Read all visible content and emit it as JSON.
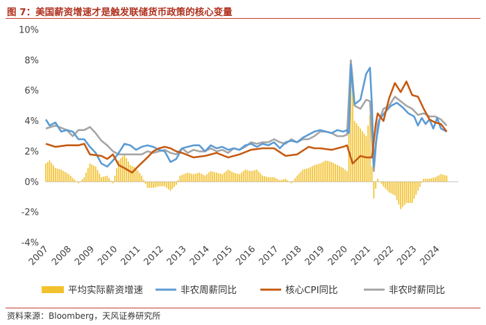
{
  "figure": {
    "title": "图 7：美国薪资增速才是触发联储货币政策的核心变量",
    "source": "资料来源：Bloomberg，天风证券研究所"
  },
  "colors": {
    "title_red": "#b0301e",
    "real_wage": "#f2c12e",
    "nonfarm_weekly": "#5b9bd5",
    "core_cpi": "#c55a11",
    "nonfarm_hourly": "#a5a5a5"
  },
  "chart_data": {
    "type": "bar+line",
    "x_type": "monthly date",
    "x_start": "2007-01",
    "x_end": "2024-06",
    "xlim": [
      "2007-01",
      "2024-12"
    ],
    "ylim": [
      -4,
      10
    ],
    "y_ticks": [
      "10%",
      "8%",
      "6%",
      "4%",
      "2%",
      "0%",
      "-2%",
      "-4%"
    ],
    "x_ticks": [
      "2007",
      "2008",
      "2009",
      "2010",
      "2011",
      "2012",
      "2013",
      "2014",
      "2015",
      "2016",
      "2017",
      "2018",
      "2019",
      "2020",
      "2021",
      "2022",
      "2023",
      "2024"
    ],
    "grid": false,
    "legend_position": "bottom",
    "series": [
      {
        "name": "平均实际薪资增速",
        "kind": "bar",
        "keypoints": [
          [
            "2007-01",
            1.2
          ],
          [
            "2007-03",
            1.4
          ],
          [
            "2007-06",
            0.9
          ],
          [
            "2007-09",
            0.8
          ],
          [
            "2008-01",
            0.5
          ],
          [
            "2008-06",
            -0.1
          ],
          [
            "2008-09",
            0.3
          ],
          [
            "2008-12",
            1.2
          ],
          [
            "2009-03",
            1.0
          ],
          [
            "2009-06",
            0.3
          ],
          [
            "2009-09",
            0.4
          ],
          [
            "2009-12",
            -0.1
          ],
          [
            "2010-03",
            1.4
          ],
          [
            "2010-06",
            1.8
          ],
          [
            "2010-09",
            1.1
          ],
          [
            "2010-12",
            0.9
          ],
          [
            "2011-03",
            0.4
          ],
          [
            "2011-06",
            -0.4
          ],
          [
            "2011-09",
            -0.4
          ],
          [
            "2011-12",
            -0.3
          ],
          [
            "2012-03",
            -0.3
          ],
          [
            "2012-06",
            -0.6
          ],
          [
            "2012-09",
            -0.2
          ],
          [
            "2012-11",
            0.4
          ],
          [
            "2013-03",
            0.6
          ],
          [
            "2013-06",
            0.5
          ],
          [
            "2013-09",
            0.6
          ],
          [
            "2013-12",
            0.4
          ],
          [
            "2014-03",
            0.7
          ],
          [
            "2014-06",
            0.6
          ],
          [
            "2014-09",
            0.5
          ],
          [
            "2014-12",
            0.8
          ],
          [
            "2015-03",
            0.6
          ],
          [
            "2015-06",
            0.5
          ],
          [
            "2015-09",
            0.8
          ],
          [
            "2015-12",
            0.7
          ],
          [
            "2016-03",
            0.8
          ],
          [
            "2016-06",
            0.4
          ],
          [
            "2016-09",
            0.3
          ],
          [
            "2016-12",
            0.3
          ],
          [
            "2017-03",
            0.1
          ],
          [
            "2017-06",
            0.2
          ],
          [
            "2017-09",
            -0.1
          ],
          [
            "2017-12",
            0.4
          ],
          [
            "2018-03",
            0.8
          ],
          [
            "2018-06",
            0.9
          ],
          [
            "2018-09",
            1.1
          ],
          [
            "2018-12",
            1.2
          ],
          [
            "2019-03",
            1.4
          ],
          [
            "2019-06",
            1.3
          ],
          [
            "2019-09",
            1.1
          ],
          [
            "2019-12",
            0.9
          ],
          [
            "2020-02",
            0.7
          ],
          [
            "2020-04",
            7.6
          ],
          [
            "2020-05",
            6.8
          ],
          [
            "2020-06",
            4.0
          ],
          [
            "2020-09",
            3.5
          ],
          [
            "2020-12",
            3.0
          ],
          [
            "2021-02",
            4.4
          ],
          [
            "2021-03",
            1.0
          ],
          [
            "2021-04",
            -1.1
          ],
          [
            "2021-06",
            0.2
          ],
          [
            "2021-09",
            -0.3
          ],
          [
            "2021-12",
            -0.7
          ],
          [
            "2022-03",
            -0.9
          ],
          [
            "2022-06",
            -1.8
          ],
          [
            "2022-09",
            -1.4
          ],
          [
            "2022-12",
            -1.4
          ],
          [
            "2023-03",
            -0.6
          ],
          [
            "2023-06",
            0.2
          ],
          [
            "2023-09",
            0.2
          ],
          [
            "2023-12",
            0.3
          ],
          [
            "2024-03",
            0.5
          ],
          [
            "2024-06",
            0.4
          ]
        ]
      },
      {
        "name": "非农周薪同比",
        "kind": "line",
        "keypoints": [
          [
            "2007-01",
            4.1
          ],
          [
            "2007-03",
            3.7
          ],
          [
            "2007-06",
            3.9
          ],
          [
            "2007-09",
            3.3
          ],
          [
            "2007-12",
            3.4
          ],
          [
            "2008-03",
            3.3
          ],
          [
            "2008-06",
            2.8
          ],
          [
            "2008-09",
            2.8
          ],
          [
            "2008-12",
            2.3
          ],
          [
            "2009-03",
            1.9
          ],
          [
            "2009-06",
            1.2
          ],
          [
            "2009-09",
            1.0
          ],
          [
            "2009-12",
            1.4
          ],
          [
            "2010-03",
            1.9
          ],
          [
            "2010-06",
            2.5
          ],
          [
            "2010-09",
            2.4
          ],
          [
            "2010-12",
            2.1
          ],
          [
            "2011-03",
            2.3
          ],
          [
            "2011-06",
            2.4
          ],
          [
            "2011-09",
            2.3
          ],
          [
            "2011-12",
            2.1
          ],
          [
            "2012-03",
            2.0
          ],
          [
            "2012-06",
            1.3
          ],
          [
            "2012-09",
            1.5
          ],
          [
            "2012-12",
            2.2
          ],
          [
            "2013-03",
            2.3
          ],
          [
            "2013-06",
            2.4
          ],
          [
            "2013-09",
            2.4
          ],
          [
            "2013-12",
            2.0
          ],
          [
            "2014-03",
            2.4
          ],
          [
            "2014-06",
            2.2
          ],
          [
            "2014-09",
            2.3
          ],
          [
            "2014-12",
            2.1
          ],
          [
            "2015-03",
            2.2
          ],
          [
            "2015-06",
            2.1
          ],
          [
            "2015-09",
            2.4
          ],
          [
            "2015-12",
            2.5
          ],
          [
            "2016-03",
            2.3
          ],
          [
            "2016-06",
            2.5
          ],
          [
            "2016-09",
            2.4
          ],
          [
            "2016-12",
            2.6
          ],
          [
            "2017-03",
            2.2
          ],
          [
            "2017-06",
            2.6
          ],
          [
            "2017-09",
            2.7
          ],
          [
            "2017-12",
            2.6
          ],
          [
            "2018-03",
            2.9
          ],
          [
            "2018-06",
            3.1
          ],
          [
            "2018-09",
            3.3
          ],
          [
            "2018-12",
            3.4
          ],
          [
            "2019-03",
            3.3
          ],
          [
            "2019-06",
            3.2
          ],
          [
            "2019-09",
            3.4
          ],
          [
            "2019-12",
            3.3
          ],
          [
            "2020-02",
            3.4
          ],
          [
            "2020-03",
            3.2
          ],
          [
            "2020-04",
            7.7
          ],
          [
            "2020-05",
            6.2
          ],
          [
            "2020-06",
            5.1
          ],
          [
            "2020-09",
            5.4
          ],
          [
            "2020-12",
            7.1
          ],
          [
            "2021-02",
            7.5
          ],
          [
            "2021-03",
            5.0
          ],
          [
            "2021-04",
            1.0
          ],
          [
            "2021-05",
            2.5
          ],
          [
            "2021-07",
            4.1
          ],
          [
            "2021-10",
            4.6
          ],
          [
            "2022-01",
            5.0
          ],
          [
            "2022-04",
            5.2
          ],
          [
            "2022-07",
            4.9
          ],
          [
            "2022-10",
            4.5
          ],
          [
            "2023-01",
            4.3
          ],
          [
            "2023-03",
            3.7
          ],
          [
            "2023-05",
            4.2
          ],
          [
            "2023-07",
            3.8
          ],
          [
            "2023-09",
            4.1
          ],
          [
            "2023-11",
            3.5
          ],
          [
            "2024-01",
            4.2
          ],
          [
            "2024-03",
            3.5
          ],
          [
            "2024-06",
            3.3
          ]
        ]
      },
      {
        "name": "核心CPI同比",
        "kind": "line",
        "keypoints": [
          [
            "2007-01",
            2.5
          ],
          [
            "2007-06",
            2.3
          ],
          [
            "2007-12",
            2.4
          ],
          [
            "2008-03",
            2.4
          ],
          [
            "2008-06",
            2.4
          ],
          [
            "2008-09",
            2.5
          ],
          [
            "2008-12",
            1.8
          ],
          [
            "2009-06",
            1.7
          ],
          [
            "2009-09",
            1.5
          ],
          [
            "2009-12",
            1.8
          ],
          [
            "2010-03",
            1.1
          ],
          [
            "2010-06",
            0.9
          ],
          [
            "2010-10",
            0.6
          ],
          [
            "2011-01",
            1.0
          ],
          [
            "2011-06",
            1.6
          ],
          [
            "2011-09",
            2.0
          ],
          [
            "2011-12",
            2.2
          ],
          [
            "2012-03",
            2.3
          ],
          [
            "2012-06",
            2.2
          ],
          [
            "2012-09",
            2.0
          ],
          [
            "2012-12",
            1.9
          ],
          [
            "2013-06",
            1.6
          ],
          [
            "2013-12",
            1.7
          ],
          [
            "2014-06",
            1.9
          ],
          [
            "2014-12",
            1.6
          ],
          [
            "2015-06",
            1.8
          ],
          [
            "2015-12",
            2.1
          ],
          [
            "2016-06",
            2.2
          ],
          [
            "2016-12",
            2.2
          ],
          [
            "2017-06",
            1.7
          ],
          [
            "2017-12",
            1.8
          ],
          [
            "2018-06",
            2.3
          ],
          [
            "2018-09",
            2.2
          ],
          [
            "2018-12",
            2.2
          ],
          [
            "2019-06",
            2.1
          ],
          [
            "2019-12",
            2.3
          ],
          [
            "2020-02",
            2.4
          ],
          [
            "2020-05",
            1.2
          ],
          [
            "2020-09",
            1.7
          ],
          [
            "2020-12",
            1.6
          ],
          [
            "2021-03",
            1.6
          ],
          [
            "2021-05",
            3.8
          ],
          [
            "2021-06",
            4.5
          ],
          [
            "2021-09",
            4.0
          ],
          [
            "2021-12",
            5.5
          ],
          [
            "2022-03",
            6.5
          ],
          [
            "2022-06",
            5.9
          ],
          [
            "2022-09",
            6.6
          ],
          [
            "2022-12",
            5.7
          ],
          [
            "2023-03",
            5.6
          ],
          [
            "2023-06",
            4.8
          ],
          [
            "2023-09",
            4.1
          ],
          [
            "2023-12",
            3.9
          ],
          [
            "2024-03",
            3.8
          ],
          [
            "2024-06",
            3.3
          ]
        ]
      },
      {
        "name": "非农时薪同比",
        "kind": "line",
        "keypoints": [
          [
            "2007-01",
            3.5
          ],
          [
            "2007-06",
            3.7
          ],
          [
            "2007-12",
            3.4
          ],
          [
            "2008-03",
            3.0
          ],
          [
            "2008-06",
            3.4
          ],
          [
            "2008-09",
            3.4
          ],
          [
            "2008-12",
            3.6
          ],
          [
            "2009-03",
            3.2
          ],
          [
            "2009-06",
            2.7
          ],
          [
            "2009-09",
            2.4
          ],
          [
            "2009-12",
            2.0
          ],
          [
            "2010-03",
            1.8
          ],
          [
            "2010-06",
            1.8
          ],
          [
            "2010-09",
            1.8
          ],
          [
            "2010-12",
            1.8
          ],
          [
            "2011-03",
            1.8
          ],
          [
            "2011-06",
            2.0
          ],
          [
            "2011-09",
            1.9
          ],
          [
            "2011-12",
            2.0
          ],
          [
            "2012-03",
            2.1
          ],
          [
            "2012-06",
            1.9
          ],
          [
            "2012-09",
            1.8
          ],
          [
            "2012-12",
            2.2
          ],
          [
            "2013-03",
            1.9
          ],
          [
            "2013-06",
            2.1
          ],
          [
            "2013-09",
            2.0
          ],
          [
            "2013-12",
            2.0
          ],
          [
            "2014-03",
            2.2
          ],
          [
            "2014-06",
            2.0
          ],
          [
            "2014-09",
            2.1
          ],
          [
            "2014-12",
            1.9
          ],
          [
            "2015-03",
            2.2
          ],
          [
            "2015-06",
            2.1
          ],
          [
            "2015-09",
            2.3
          ],
          [
            "2015-12",
            2.6
          ],
          [
            "2016-03",
            2.5
          ],
          [
            "2016-06",
            2.6
          ],
          [
            "2016-09",
            2.6
          ],
          [
            "2016-12",
            2.8
          ],
          [
            "2017-03",
            2.6
          ],
          [
            "2017-06",
            2.5
          ],
          [
            "2017-09",
            2.8
          ],
          [
            "2017-12",
            2.6
          ],
          [
            "2018-03",
            2.8
          ],
          [
            "2018-06",
            2.8
          ],
          [
            "2018-09",
            3.0
          ],
          [
            "2018-12",
            3.3
          ],
          [
            "2019-03",
            3.3
          ],
          [
            "2019-06",
            3.2
          ],
          [
            "2019-09",
            3.0
          ],
          [
            "2019-12",
            3.0
          ],
          [
            "2020-02",
            3.1
          ],
          [
            "2020-04",
            8.0
          ],
          [
            "2020-05",
            6.7
          ],
          [
            "2020-06",
            5.0
          ],
          [
            "2020-09",
            4.8
          ],
          [
            "2020-12",
            5.4
          ],
          [
            "2021-02",
            5.3
          ],
          [
            "2021-04",
            0.7
          ],
          [
            "2021-06",
            3.8
          ],
          [
            "2021-09",
            4.8
          ],
          [
            "2021-12",
            5.0
          ],
          [
            "2022-03",
            5.6
          ],
          [
            "2022-06",
            5.3
          ],
          [
            "2022-09",
            5.0
          ],
          [
            "2022-12",
            4.8
          ],
          [
            "2023-03",
            4.4
          ],
          [
            "2023-06",
            4.5
          ],
          [
            "2023-09",
            4.3
          ],
          [
            "2023-12",
            4.3
          ],
          [
            "2024-03",
            4.1
          ],
          [
            "2024-06",
            3.7
          ]
        ]
      }
    ]
  }
}
